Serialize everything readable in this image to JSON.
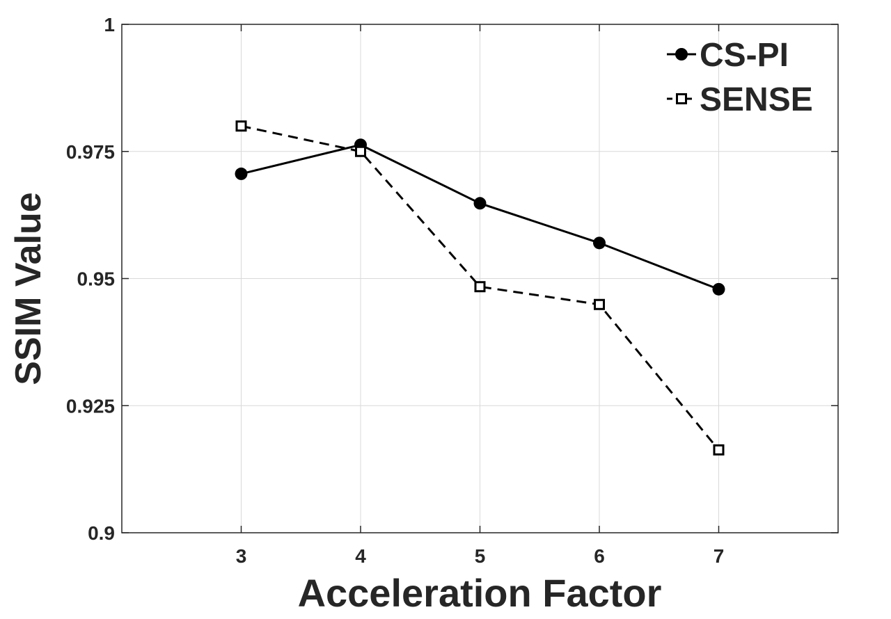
{
  "chart_data": {
    "type": "line",
    "title": "",
    "xlabel": "Acceleration Factor",
    "ylabel": "SSIM Value",
    "xlim": [
      2,
      8
    ],
    "ylim": [
      0.9,
      1
    ],
    "xticks": [
      3,
      4,
      5,
      6,
      7
    ],
    "xtick_labels": [
      "3",
      "4",
      "5",
      "6",
      "7"
    ],
    "yticks": [
      0.9,
      0.925,
      0.95,
      0.975,
      1
    ],
    "ytick_labels": [
      "0.9",
      "0.925",
      "0.95",
      "0.975",
      "1"
    ],
    "grid": true,
    "legend_position": "top-right",
    "x": [
      3,
      4,
      5,
      6,
      7
    ],
    "series": [
      {
        "name": "CS-PI",
        "values": [
          0.9706,
          0.9763,
          0.9648,
          0.957,
          0.9479
        ],
        "line": "solid",
        "marker": "filled-circle",
        "color": "#000000"
      },
      {
        "name": "SENSE",
        "values": [
          0.98,
          0.975,
          0.9484,
          0.9449,
          0.9163
        ],
        "line": "dashed",
        "marker": "open-square",
        "color": "#000000"
      }
    ]
  }
}
